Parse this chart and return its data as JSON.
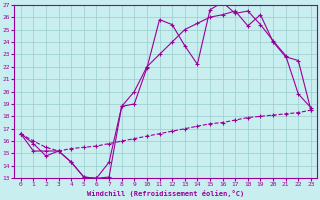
{
  "xlabel": "Windchill (Refroidissement éolien,°C)",
  "bg_color": "#c8eef0",
  "grid_color": "#99cccc",
  "line_color": "#990099",
  "xlim": [
    -0.5,
    23.5
  ],
  "ylim": [
    13,
    27
  ],
  "xticks": [
    0,
    1,
    2,
    3,
    4,
    5,
    6,
    7,
    8,
    9,
    10,
    11,
    12,
    13,
    14,
    15,
    16,
    17,
    18,
    19,
    20,
    21,
    22,
    23
  ],
  "yticks": [
    13,
    14,
    15,
    16,
    17,
    18,
    19,
    20,
    21,
    22,
    23,
    24,
    25,
    26,
    27
  ],
  "series1_x": [
    0,
    1,
    2,
    3,
    4,
    5,
    6,
    7,
    8,
    9,
    10,
    11,
    12,
    13,
    14,
    15,
    16,
    17,
    18,
    19,
    20,
    21,
    22,
    23
  ],
  "series1_y": [
    16.6,
    15.8,
    14.8,
    15.2,
    14.3,
    13.1,
    13.0,
    13.1,
    18.8,
    19.0,
    21.9,
    25.8,
    25.4,
    23.7,
    22.2,
    26.6,
    27.2,
    26.3,
    26.5,
    25.4,
    24.1,
    22.9,
    19.8,
    18.7
  ],
  "series2_x": [
    0,
    1,
    2,
    3,
    4,
    5,
    6,
    7,
    8,
    9,
    10,
    11,
    12,
    13,
    14,
    15,
    16,
    17,
    18,
    19,
    20,
    21,
    22,
    23
  ],
  "series2_y": [
    16.6,
    15.2,
    15.2,
    15.2,
    14.3,
    13.1,
    13.0,
    14.3,
    18.8,
    20.0,
    22.0,
    23.0,
    24.0,
    25.0,
    25.5,
    26.0,
    26.2,
    26.5,
    25.3,
    26.2,
    24.0,
    22.8,
    22.5,
    18.5
  ],
  "series3_x": [
    0,
    1,
    2,
    3,
    4,
    5,
    6,
    7,
    8,
    9,
    10,
    11,
    12,
    13,
    14,
    15,
    16,
    17,
    18,
    19,
    20,
    21,
    22,
    23
  ],
  "series3_y": [
    16.6,
    16.0,
    15.5,
    15.2,
    15.4,
    15.5,
    15.6,
    15.8,
    16.0,
    16.2,
    16.4,
    16.6,
    16.8,
    17.0,
    17.2,
    17.4,
    17.5,
    17.7,
    17.9,
    18.0,
    18.1,
    18.2,
    18.3,
    18.5
  ]
}
